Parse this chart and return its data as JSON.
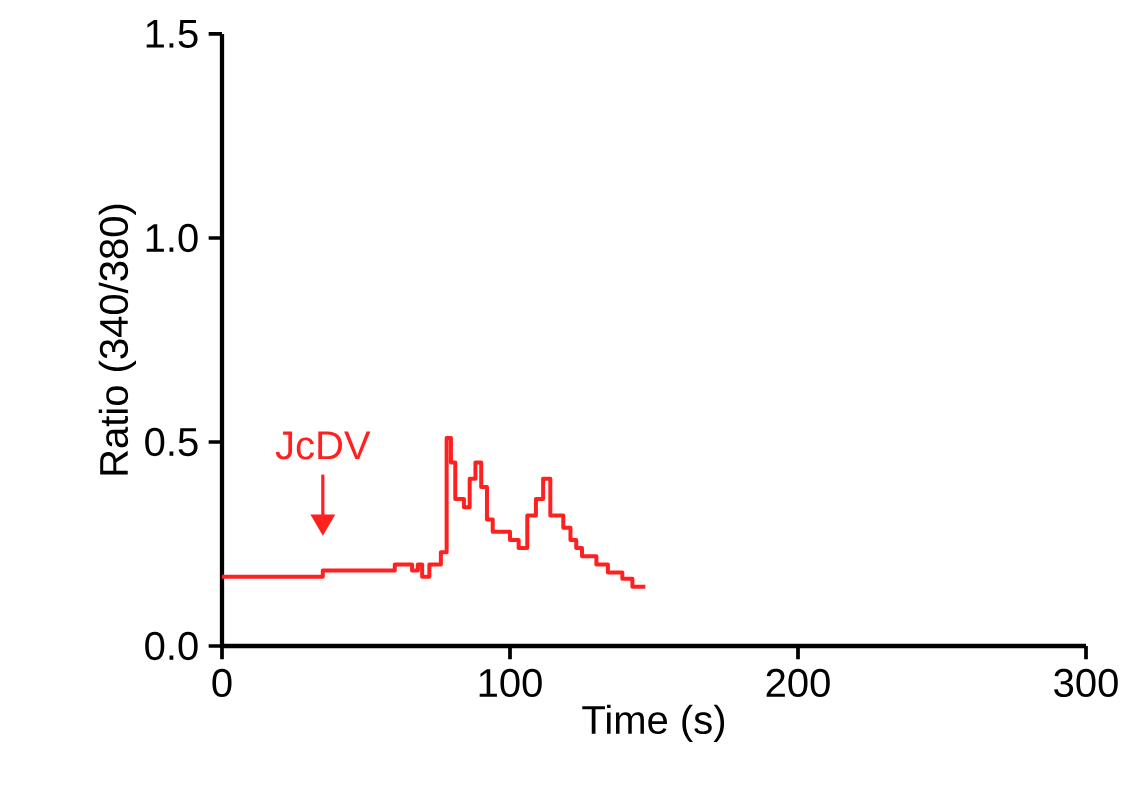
{
  "chart_data": {
    "type": "line",
    "xlabel": "Time (s)",
    "ylabel": "Ratio (340/380)",
    "xlim": [
      0,
      300
    ],
    "xticks": [
      0,
      100,
      200,
      300
    ],
    "ylim": [
      0,
      1.5
    ],
    "yticks": [
      {
        "value": 0,
        "label": "0.0"
      },
      {
        "value": 0.5,
        "label": "0.5"
      },
      {
        "value": 1,
        "label": "1.0"
      },
      {
        "value": 1.5,
        "label": "1.5"
      }
    ],
    "grid": false,
    "marker": "none",
    "line_style": "solid",
    "annotations": [
      "JcDV"
    ],
    "series": [
      {
        "color": "#ff2020",
        "x": [
          0,
          35,
          35,
          60,
          60,
          66,
          66,
          68,
          68,
          69.5,
          69.5,
          72,
          72,
          76,
          76,
          78,
          78,
          79.5,
          79.5,
          81,
          81,
          84,
          84,
          86,
          86,
          88,
          88,
          90,
          90,
          92,
          92,
          94,
          94,
          100,
          100,
          103,
          103,
          106,
          106,
          109,
          109,
          111.5,
          111.5,
          114,
          114,
          118.5,
          118.5,
          121,
          121,
          123,
          123,
          125,
          125,
          130,
          130,
          134,
          134,
          139,
          139,
          142.5,
          142.5,
          147
        ],
        "values": [
          0.17,
          0.17,
          0.185,
          0.185,
          0.2,
          0.2,
          0.185,
          0.185,
          0.2,
          0.2,
          0.17,
          0.17,
          0.2,
          0.2,
          0.23,
          0.23,
          0.51,
          0.51,
          0.45,
          0.45,
          0.36,
          0.36,
          0.34,
          0.34,
          0.41,
          0.41,
          0.45,
          0.45,
          0.39,
          0.39,
          0.31,
          0.31,
          0.28,
          0.28,
          0.26,
          0.26,
          0.24,
          0.24,
          0.32,
          0.32,
          0.36,
          0.36,
          0.41,
          0.41,
          0.32,
          0.32,
          0.29,
          0.29,
          0.26,
          0.26,
          0.24,
          0.24,
          0.22,
          0.22,
          0.2,
          0.2,
          0.18,
          0.18,
          0.165,
          0.165,
          0.145,
          0.145
        ]
      }
    ]
  }
}
